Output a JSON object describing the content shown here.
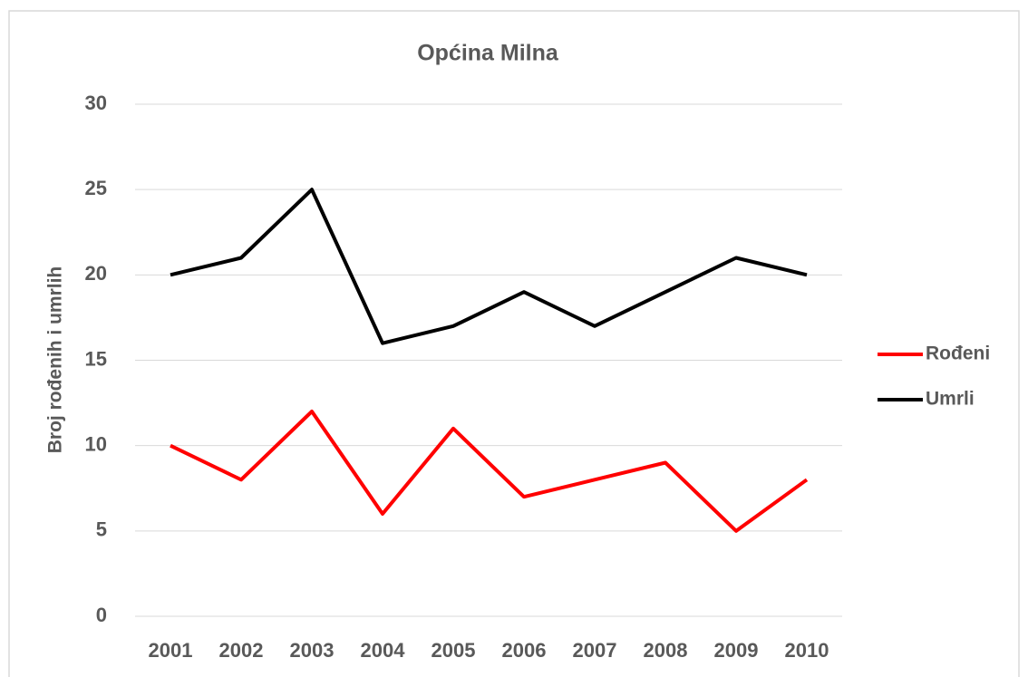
{
  "chart_data": {
    "type": "line",
    "title": "Općina Milna",
    "y_label": "Broj rođenih i umrlih",
    "categories": [
      "2001",
      "2002",
      "2003",
      "2004",
      "2005",
      "2006",
      "2007",
      "2008",
      "2009",
      "2010"
    ],
    "series": [
      {
        "name": "Rođeni",
        "color": "#ff0000",
        "values": [
          10,
          8,
          12,
          6,
          11,
          7,
          8,
          9,
          5,
          8
        ]
      },
      {
        "name": "Umrli",
        "color": "#000000",
        "values": [
          20,
          21,
          25,
          16,
          17,
          19,
          17,
          19,
          21,
          20
        ]
      }
    ],
    "ylim": [
      0,
      30
    ],
    "yticks": [
      0,
      5,
      10,
      15,
      20,
      25,
      30
    ],
    "grid": true,
    "legend": "right"
  }
}
